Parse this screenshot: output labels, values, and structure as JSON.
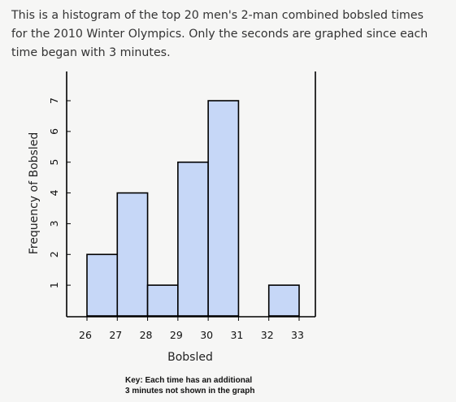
{
  "description": {
    "text": "This is a histogram of the top 20 men's 2-man combined bobsled times for the 2010 Winter Olympics. Only the seconds are graphed since each time began with 3 minutes."
  },
  "key": {
    "line1": "Key: Each time has an additional",
    "line2": "3 minutes not shown in the graph"
  },
  "colors": {
    "bar_fill": "#c6d7f7",
    "bar_stroke": "#000000",
    "text": "#333333"
  },
  "chart_data": {
    "type": "bar",
    "title": "",
    "xlabel": "Bobsled",
    "ylabel": "Frequency of Bobsled",
    "bins": [
      {
        "start": 26,
        "end": 27,
        "value": 2
      },
      {
        "start": 27,
        "end": 28,
        "value": 4
      },
      {
        "start": 28,
        "end": 29,
        "value": 1
      },
      {
        "start": 29,
        "end": 30,
        "value": 5
      },
      {
        "start": 30,
        "end": 31,
        "value": 7
      },
      {
        "start": 31,
        "end": 32,
        "value": 0
      },
      {
        "start": 32,
        "end": 33,
        "value": 1
      }
    ],
    "xticks": [
      26,
      27,
      28,
      29,
      30,
      31,
      32,
      33
    ],
    "yticks": [
      1,
      2,
      3,
      4,
      5,
      6,
      7
    ],
    "xlim": [
      25.4,
      33.5
    ],
    "ylim": [
      0,
      7.3
    ],
    "grid": false,
    "legend": "none"
  }
}
